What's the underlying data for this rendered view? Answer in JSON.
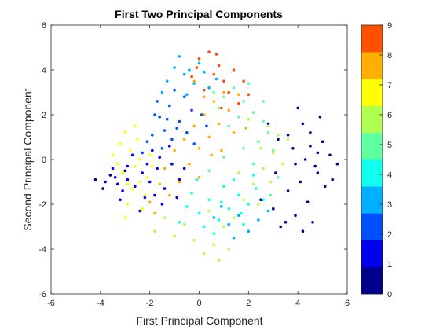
{
  "chart_data": {
    "type": "scatter",
    "title": "First Two Principal Components",
    "xlabel": "First Principal Component",
    "ylabel": "Second Principal Component",
    "xlim": [
      -6,
      6
    ],
    "ylim": [
      -6,
      6
    ],
    "xticks": [
      -6,
      -4,
      -2,
      0,
      2,
      4,
      6
    ],
    "yticks": [
      -6,
      -4,
      -2,
      0,
      2,
      4,
      6
    ],
    "grid": false,
    "colorbar": {
      "range": [
        0,
        9
      ],
      "ticks": [
        0,
        1,
        2,
        3,
        4,
        5,
        6,
        7,
        8,
        9
      ],
      "bins": [
        "#00008f",
        "#0000ef",
        "#0050ff",
        "#00afff",
        "#10ffef",
        "#60ff9f",
        "#afff50",
        "#ffff00",
        "#ffaf00",
        "#ff5000"
      ]
    },
    "series": [
      {
        "class": 0,
        "points": [
          [
            4.2,
            1.6
          ],
          [
            4.5,
            1.2
          ],
          [
            5.0,
            0.8
          ],
          [
            5.3,
            0.2
          ],
          [
            5.6,
            -0.2
          ],
          [
            4.8,
            -0.6
          ],
          [
            4.1,
            -1.0
          ],
          [
            3.6,
            -1.4
          ],
          [
            4.4,
            -1.9
          ],
          [
            3.9,
            -2.5
          ],
          [
            4.6,
            -2.8
          ],
          [
            3.3,
            -3.0
          ],
          [
            3.0,
            -2.2
          ],
          [
            3.8,
            0.5
          ],
          [
            4.3,
            0.0
          ],
          [
            5.1,
            -1.2
          ],
          [
            4.9,
            1.9
          ],
          [
            3.6,
            1.1
          ],
          [
            3.1,
            -0.6
          ],
          [
            2.8,
            1.6
          ],
          [
            4.0,
            2.3
          ],
          [
            4.7,
            -0.3
          ],
          [
            5.4,
            -0.9
          ],
          [
            3.5,
            -2.8
          ],
          [
            4.2,
            -3.2
          ],
          [
            2.5,
            -1.8
          ],
          [
            3.2,
            0.9
          ],
          [
            4.5,
            0.6
          ],
          [
            3.9,
            -0.2
          ],
          [
            4.8,
            0.3
          ],
          [
            -4.2,
            -0.9
          ],
          [
            -3.9,
            -1.3
          ],
          [
            -3.6,
            -0.7
          ],
          [
            -3.3,
            -1.1
          ],
          [
            -3.0,
            -0.5
          ]
        ]
      },
      {
        "class": 1,
        "points": [
          [
            -3.8,
            -1.0
          ],
          [
            -3.4,
            -0.8
          ],
          [
            -3.1,
            -1.4
          ],
          [
            -2.9,
            -0.3
          ],
          [
            -2.6,
            -1.2
          ],
          [
            -2.3,
            -0.6
          ],
          [
            -2.0,
            -1.0
          ],
          [
            -1.7,
            -0.4
          ],
          [
            -1.4,
            -1.3
          ],
          [
            -1.1,
            -0.2
          ],
          [
            -0.8,
            -0.9
          ],
          [
            -2.7,
            0.2
          ],
          [
            -2.2,
            -1.7
          ],
          [
            -1.9,
            0.4
          ],
          [
            -1.5,
            -2.0
          ],
          [
            -3.2,
            -1.8
          ],
          [
            -0.6,
            -0.4
          ],
          [
            -1.2,
            0.6
          ],
          [
            -2.4,
            -2.3
          ],
          [
            -1.8,
            -1.6
          ],
          [
            -0.9,
            -1.7
          ],
          [
            -2.9,
            -0.9
          ],
          [
            -3.5,
            -0.4
          ],
          [
            -1.6,
            0.1
          ],
          [
            -2.1,
            -0.2
          ]
        ]
      },
      {
        "class": 2,
        "points": [
          [
            -1.6,
            1.9
          ],
          [
            -1.2,
            2.4
          ],
          [
            -0.8,
            1.7
          ],
          [
            -1.4,
            1.3
          ],
          [
            -1.9,
            1.1
          ],
          [
            -0.6,
            2.8
          ],
          [
            -1.0,
            3.1
          ],
          [
            -0.3,
            2.2
          ],
          [
            -1.7,
            2.6
          ],
          [
            -2.1,
            0.8
          ],
          [
            -0.5,
            1.2
          ],
          [
            -1.1,
            0.9
          ],
          [
            0.3,
            1.5
          ],
          [
            -2.3,
            0.3
          ],
          [
            -1.5,
            0.5
          ],
          [
            0.1,
            2.0
          ],
          [
            -0.9,
            1.4
          ],
          [
            -1.3,
            1.8
          ],
          [
            -0.2,
            0.7
          ],
          [
            -1.8,
            2.0
          ]
        ]
      },
      {
        "class": 3,
        "points": [
          [
            -1.0,
            4.1
          ],
          [
            -0.6,
            3.8
          ],
          [
            -1.3,
            3.5
          ],
          [
            -0.2,
            3.4
          ],
          [
            0.2,
            3.9
          ],
          [
            -0.8,
            4.6
          ],
          [
            0.4,
            3.2
          ],
          [
            -0.5,
            2.9
          ],
          [
            -1.5,
            3.0
          ],
          [
            0.0,
            4.3
          ],
          [
            1.2,
            -2.9
          ],
          [
            1.6,
            -2.5
          ],
          [
            2.0,
            -3.2
          ],
          [
            2.4,
            -2.7
          ],
          [
            0.9,
            -2.1
          ],
          [
            2.8,
            -2.3
          ],
          [
            1.4,
            -3.5
          ],
          [
            0.6,
            -2.6
          ],
          [
            -0.4,
            4.0
          ],
          [
            0.7,
            3.6
          ]
        ]
      },
      {
        "class": 4,
        "points": [
          [
            -0.5,
            -2.1
          ],
          [
            0.0,
            -2.4
          ],
          [
            0.4,
            -1.8
          ],
          [
            0.8,
            -2.7
          ],
          [
            1.2,
            -2.2
          ],
          [
            1.6,
            -1.6
          ],
          [
            2.0,
            -2.0
          ],
          [
            2.3,
            -1.3
          ],
          [
            0.2,
            -3.0
          ],
          [
            -0.3,
            -1.5
          ],
          [
            1.0,
            -1.2
          ],
          [
            1.8,
            -2.9
          ],
          [
            2.6,
            -1.8
          ],
          [
            0.6,
            -3.3
          ],
          [
            -0.8,
            -2.8
          ],
          [
            1.4,
            -0.9
          ],
          [
            2.2,
            -0.7
          ],
          [
            -0.1,
            -0.9
          ],
          [
            0.9,
            -1.9
          ],
          [
            1.7,
            -2.4
          ]
        ]
      },
      {
        "class": 5,
        "points": [
          [
            1.0,
            2.8
          ],
          [
            1.4,
            3.2
          ],
          [
            1.8,
            2.6
          ],
          [
            2.2,
            2.1
          ],
          [
            2.6,
            1.7
          ],
          [
            1.6,
            1.9
          ],
          [
            2.0,
            3.4
          ],
          [
            0.8,
            2.3
          ],
          [
            2.4,
            0.8
          ],
          [
            2.8,
            1.2
          ],
          [
            3.0,
            0.4
          ],
          [
            1.2,
            1.5
          ],
          [
            0.6,
            3.0
          ],
          [
            2.2,
            -0.2
          ],
          [
            1.8,
            0.5
          ],
          [
            2.6,
            2.6
          ],
          [
            0.4,
            -0.5
          ],
          [
            1.0,
            0.1
          ],
          [
            3.2,
            -0.8
          ],
          [
            2.9,
            -1.6
          ]
        ]
      },
      {
        "class": 6,
        "points": [
          [
            2.8,
            1.5
          ],
          [
            3.2,
            1.1
          ],
          [
            3.0,
            0.3
          ],
          [
            2.6,
            -0.4
          ],
          [
            2.2,
            -1.1
          ],
          [
            1.8,
            -1.8
          ],
          [
            1.4,
            -2.6
          ],
          [
            1.0,
            -3.0
          ],
          [
            0.6,
            -3.8
          ],
          [
            0.2,
            -4.2
          ],
          [
            -0.2,
            -3.6
          ],
          [
            0.8,
            -4.5
          ],
          [
            3.4,
            -0.2
          ],
          [
            2.4,
            -2.0
          ],
          [
            1.6,
            -0.6
          ],
          [
            -1.8,
            -3.2
          ],
          [
            -1.4,
            -2.6
          ],
          [
            -1.0,
            -3.4
          ],
          [
            2.0,
            1.8
          ],
          [
            3.6,
            0.9
          ],
          [
            2.9,
            -1.0
          ],
          [
            1.2,
            -4.0
          ],
          [
            -0.6,
            -2.9
          ],
          [
            0.4,
            -2.3
          ],
          [
            2.5,
            0.5
          ]
        ]
      },
      {
        "class": 7,
        "points": [
          [
            -3.0,
            1.2
          ],
          [
            -2.8,
            0.4
          ],
          [
            -2.6,
            -0.3
          ],
          [
            -2.4,
            -1.0
          ],
          [
            -2.2,
            -1.6
          ],
          [
            -2.9,
            -2.0
          ],
          [
            -3.2,
            0.7
          ],
          [
            -2.5,
            0.9
          ],
          [
            -2.0,
            0.2
          ],
          [
            -3.3,
            -0.2
          ],
          [
            -2.7,
            -1.3
          ],
          [
            -2.3,
            -2.2
          ],
          [
            -3.5,
            0.2
          ],
          [
            -2.1,
            -0.8
          ],
          [
            -2.9,
            -1.1
          ],
          [
            -3.0,
            -2.6
          ],
          [
            -2.6,
            1.5
          ],
          [
            -1.9,
            -0.3
          ],
          [
            -2.4,
            0.0
          ],
          [
            -3.1,
            -0.6
          ]
        ]
      },
      {
        "class": 8,
        "points": [
          [
            -1.0,
            0.4
          ],
          [
            -0.6,
            0.9
          ],
          [
            -0.2,
            1.5
          ],
          [
            0.2,
            2.0
          ],
          [
            0.6,
            2.6
          ],
          [
            1.0,
            3.0
          ],
          [
            -0.4,
            -0.2
          ],
          [
            0.0,
            0.5
          ],
          [
            0.4,
            1.0
          ],
          [
            0.8,
            1.6
          ],
          [
            1.2,
            2.2
          ],
          [
            1.6,
            2.9
          ],
          [
            -0.8,
            -1.0
          ],
          [
            -1.2,
            -1.6
          ],
          [
            -1.6,
            -1.1
          ],
          [
            0.0,
            -0.8
          ],
          [
            0.5,
            0.2
          ],
          [
            1.4,
            1.2
          ],
          [
            -2.0,
            -1.9
          ],
          [
            -1.4,
            -0.4
          ],
          [
            0.9,
            0.4
          ],
          [
            0.2,
            2.8
          ],
          [
            -0.2,
            3.5
          ],
          [
            1.9,
            1.4
          ],
          [
            -1.8,
            -2.4
          ]
        ]
      },
      {
        "class": 9,
        "points": [
          [
            0.4,
            4.8
          ],
          [
            0.0,
            4.5
          ],
          [
            0.8,
            4.2
          ],
          [
            -0.3,
            3.7
          ],
          [
            0.6,
            3.8
          ],
          [
            1.0,
            3.5
          ],
          [
            1.4,
            4.0
          ],
          [
            0.2,
            3.1
          ],
          [
            1.8,
            3.5
          ],
          [
            1.2,
            3.0
          ],
          [
            0.7,
            4.7
          ],
          [
            -0.1,
            4.1
          ],
          [
            2.0,
            2.9
          ],
          [
            1.6,
            2.5
          ],
          [
            0.9,
            2.3
          ]
        ]
      }
    ]
  }
}
